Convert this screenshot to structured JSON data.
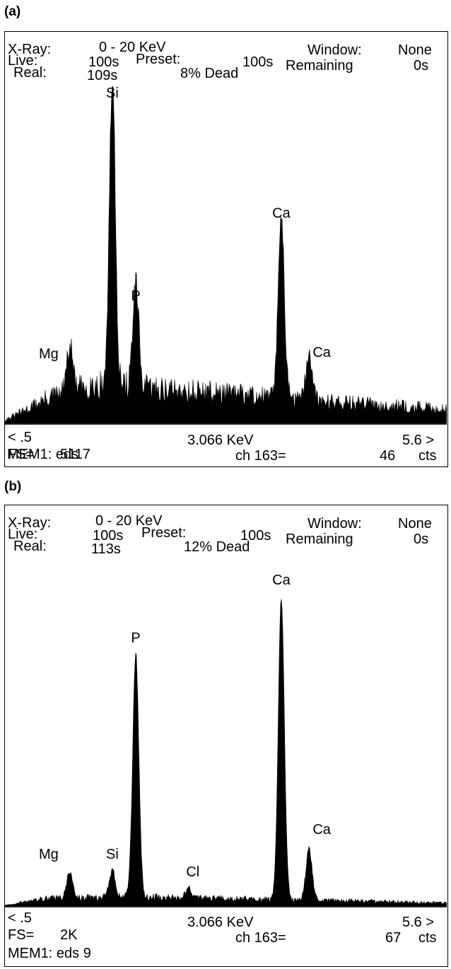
{
  "panels": [
    {
      "label": "(a)",
      "header": {
        "xray_label": "X-Ray:",
        "xray_range": "0 - 20 KeV",
        "live_label": "Live:",
        "live_value": "100s",
        "preset_label": "Preset:",
        "preset_value": "100s",
        "real_label": "Real:",
        "real_value": "109s",
        "dead_value": "8% Dead",
        "window_label": "Window:",
        "window_value": "None",
        "remaining_label": "Remaining",
        "remaining_value": "0s"
      },
      "footer": {
        "left_marker": "< .5",
        "cursor_energy": "3.066 KeV",
        "right_marker": "5.6 >",
        "fs_label": "FS=",
        "fs_value": "511",
        "channel": "ch 163=",
        "counts": "46",
        "counts_unit": "cts",
        "mem": "MEM1: eds 7"
      }
    },
    {
      "label": "(b)",
      "header": {
        "xray_label": "X-Ray:",
        "xray_range": "0 - 20 KeV",
        "live_label": "Live:",
        "live_value": "100s",
        "preset_label": "Preset:",
        "preset_value": "100s",
        "real_label": "Real:",
        "real_value": "113s",
        "dead_value": "12% Dead",
        "window_label": "Window:",
        "window_value": "None",
        "remaining_label": "Remaining",
        "remaining_value": "0s"
      },
      "footer": {
        "left_marker": "< .5",
        "cursor_energy": "3.066 KeV",
        "right_marker": "5.6 >",
        "fs_label": "FS=",
        "fs_value": "2K",
        "channel": "ch 163=",
        "counts": "67",
        "counts_unit": "cts",
        "mem": "MEM1: eds 9"
      }
    }
  ],
  "chart_data": [
    {
      "type": "area",
      "xlim": [
        0.5,
        5.6
      ],
      "xunit": "KeV",
      "ylim": [
        0,
        511
      ],
      "fill_color": "#000000",
      "peaks": [
        {
          "label": "Mg",
          "energy": 1.25,
          "height": 70
        },
        {
          "label": "Si",
          "energy": 1.74,
          "height": 478
        },
        {
          "label": "P",
          "energy": 2.01,
          "height": 160
        },
        {
          "label": "Ca",
          "energy": 3.69,
          "height": 290
        },
        {
          "label": "Ca",
          "energy": 4.01,
          "height": 72
        }
      ],
      "background": [
        [
          0.5,
          5
        ],
        [
          0.7,
          18
        ],
        [
          1.0,
          40
        ],
        [
          1.5,
          60
        ],
        [
          2.5,
          52
        ],
        [
          3.5,
          42
        ],
        [
          4.5,
          32
        ],
        [
          5.6,
          22
        ]
      ]
    },
    {
      "type": "area",
      "xlim": [
        0.5,
        5.6
      ],
      "xunit": "KeV",
      "ylim": [
        0,
        2048
      ],
      "fill_color": "#000000",
      "peaks": [
        {
          "label": "Mg",
          "energy": 1.25,
          "height": 170
        },
        {
          "label": "Si",
          "energy": 1.74,
          "height": 170
        },
        {
          "label": "P",
          "energy": 2.01,
          "height": 1560
        },
        {
          "label": "Cl",
          "energy": 2.62,
          "height": 60
        },
        {
          "label": "Ca",
          "energy": 3.69,
          "height": 1930
        },
        {
          "label": "Ca",
          "energy": 4.01,
          "height": 330
        }
      ],
      "background": [
        [
          0.5,
          5
        ],
        [
          0.7,
          25
        ],
        [
          1.0,
          50
        ],
        [
          2.0,
          60
        ],
        [
          3.0,
          50
        ],
        [
          4.0,
          40
        ],
        [
          5.0,
          28
        ],
        [
          5.6,
          20
        ]
      ]
    }
  ]
}
